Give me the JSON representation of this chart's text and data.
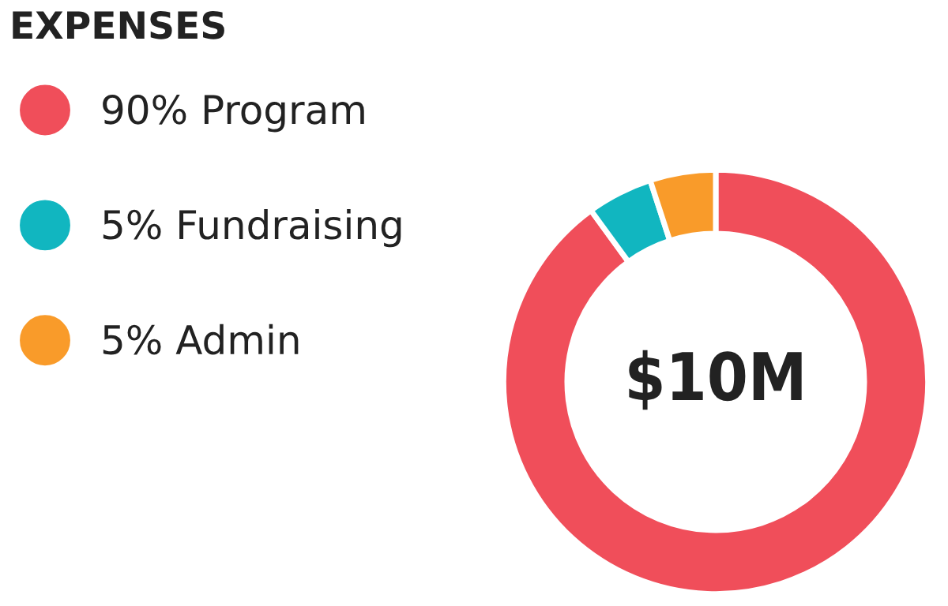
{
  "chart_data": {
    "type": "donut",
    "title": "EXPENSES",
    "categories": [
      "Program",
      "Fundraising",
      "Admin"
    ],
    "values": [
      90,
      5,
      5
    ],
    "colors": [
      "#f04e5a",
      "#11b6c0",
      "#f99b2a"
    ],
    "value_labels": [
      "90%",
      "5%",
      "5%"
    ],
    "annotations": [
      "$10M"
    ],
    "legend": "left"
  }
}
